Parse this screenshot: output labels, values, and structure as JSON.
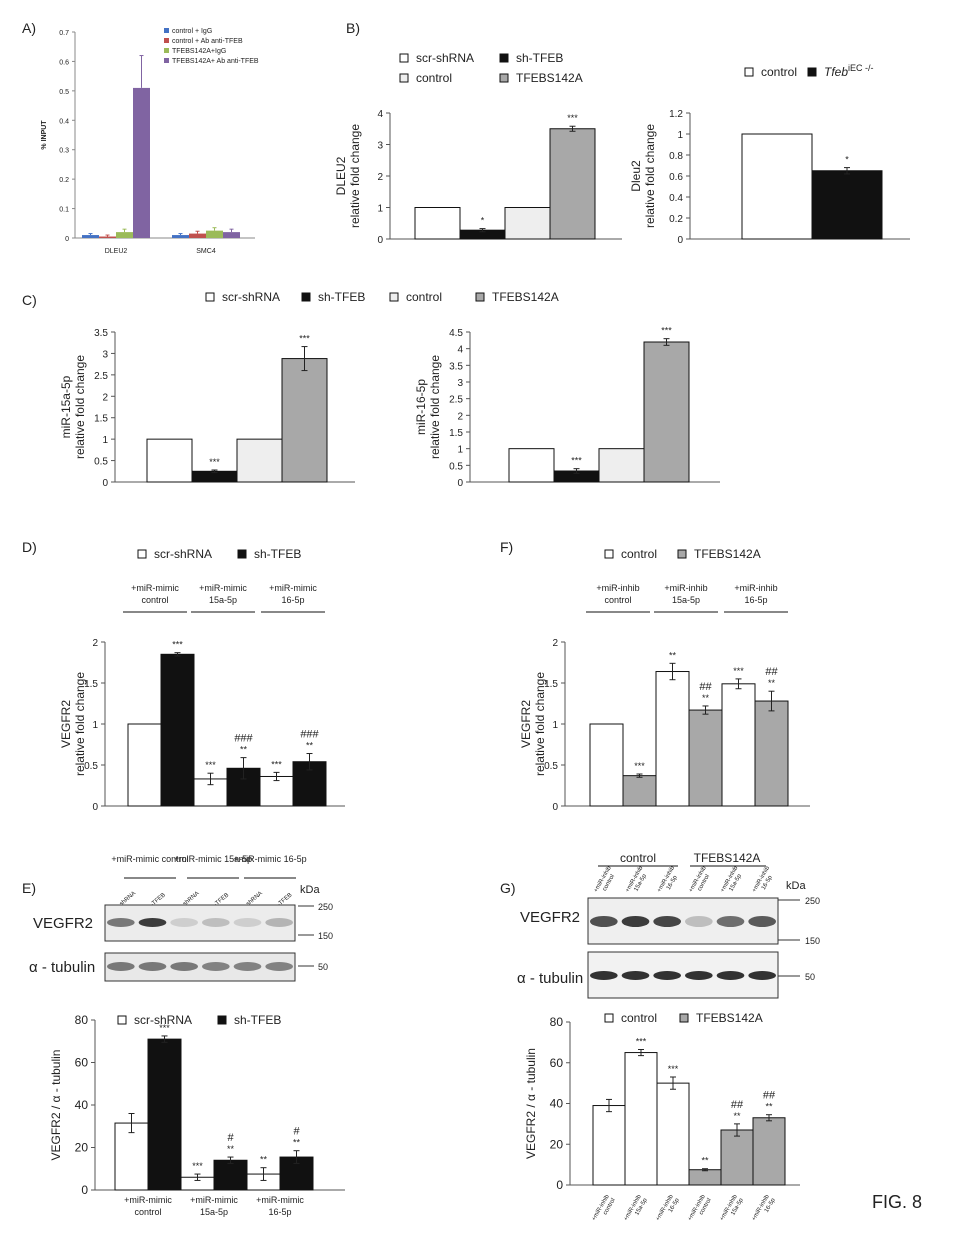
{
  "figure_label": "FIG. 8",
  "panel_labels": {
    "A": "A)",
    "B": "B)",
    "C": "C)",
    "D": "D)",
    "E": "E)",
    "F": "F)",
    "G": "G)"
  },
  "colors": {
    "white": "#ffffff",
    "black": "#111111",
    "light": "#eeeeee",
    "gray": "#a8a8a8",
    "blue": "#4472c4",
    "red": "#c0504d",
    "green": "#9bbb59",
    "purple": "#8064a2"
  },
  "blots": {
    "E": {
      "group_labels": [
        "+miR-mimic control",
        "+miR-mimic 15a-5p",
        "+miR-mimic 16-5p"
      ],
      "lane_labels": [
        "scr-shRNA",
        "sh-TFEB",
        "scr-shRNA",
        "sh-TFEB",
        "scr-shRNA",
        "sh-TFEB"
      ],
      "kda": "kDa",
      "rows": [
        "VEGFR2",
        "α - tubulin"
      ],
      "markers": [
        "250",
        "150",
        "50"
      ]
    },
    "G": {
      "group_labels": [
        "control",
        "TFEBS142A"
      ],
      "lane_labels": [
        "+miR-inhib control",
        "+miR-inhib 15a-5p",
        "+miR-inhib 16-5p",
        "+miR-inhib control",
        "+miR-inhib 15a-5p",
        "+miR-inhib 16-5p"
      ],
      "kda": "kDa",
      "rows": [
        "VEGFR2",
        "α - tubulin"
      ],
      "markers": [
        "250",
        "150",
        "50"
      ]
    }
  },
  "chart_data": [
    {
      "id": "A",
      "type": "bar",
      "ylabel": "% INPUT",
      "ylim": [
        0,
        0.7
      ],
      "yticks": [
        "0",
        "0.1",
        "0.2",
        "0.3",
        "0.4",
        "0.5",
        "0.6",
        "0.7"
      ],
      "categories": [
        "DLEU2",
        "SMC4"
      ],
      "series": [
        {
          "name": "control + IgG",
          "color": "#4472c4",
          "values": [
            0.01,
            0.01
          ],
          "err": [
            0.005,
            0.005
          ]
        },
        {
          "name": "control + Ab anti-TFEB",
          "color": "#c0504d",
          "values": [
            0.005,
            0.015
          ],
          "err": [
            0.005,
            0.008
          ]
        },
        {
          "name": "TFEBS142A+IgG",
          "color": "#9bbb59",
          "values": [
            0.02,
            0.025
          ],
          "err": [
            0.01,
            0.01
          ]
        },
        {
          "name": "TFEBS142A+ Ab anti-TFEB",
          "color": "#8064a2",
          "values": [
            0.51,
            0.02
          ],
          "err": [
            0.11,
            0.01
          ]
        }
      ]
    },
    {
      "id": "B1",
      "type": "bar",
      "ylabel": "DLEU2",
      "ylabel2": "relative fold change",
      "ylim": [
        0,
        4
      ],
      "yticks": [
        "0",
        "1",
        "2",
        "3",
        "4"
      ],
      "legend": [
        {
          "name": "scr-shRNA",
          "color": "#ffffff"
        },
        {
          "name": "sh-TFEB",
          "color": "#111111"
        },
        {
          "name": "control",
          "color": "#eeeeee"
        },
        {
          "name": "TFEBS142A",
          "color": "#a8a8a8"
        }
      ],
      "bars": [
        {
          "value": 1,
          "err": 0,
          "color": "#ffffff",
          "sig": ""
        },
        {
          "value": 0.28,
          "err": 0.05,
          "color": "#111111",
          "sig": "*"
        },
        {
          "value": 1,
          "err": 0,
          "color": "#eeeeee",
          "sig": ""
        },
        {
          "value": 3.5,
          "err": 0.08,
          "color": "#a8a8a8",
          "sig": "***"
        }
      ]
    },
    {
      "id": "B2",
      "type": "bar",
      "ylabel": "Dleu2",
      "ylabel2": "relative fold change",
      "ylim": [
        0,
        1.2
      ],
      "yticks": [
        "0",
        "0.2",
        "0.4",
        "0.6",
        "0.8",
        "1",
        "1.2"
      ],
      "legend": [
        {
          "name": "control",
          "color": "#ffffff"
        },
        {
          "name": "Tfeb",
          "sup": "iEC -/-",
          "color": "#111111"
        }
      ],
      "bars": [
        {
          "value": 1,
          "err": 0,
          "color": "#ffffff",
          "sig": ""
        },
        {
          "value": 0.65,
          "err": 0.03,
          "color": "#111111",
          "sig": "*"
        }
      ]
    },
    {
      "id": "C1",
      "type": "bar",
      "ylabel": "miR-15a-5p",
      "ylabel2": "relative fold change",
      "ylim": [
        0,
        3.5
      ],
      "yticks": [
        "0",
        "0.5",
        "1",
        "1.5",
        "2",
        "2.5",
        "3",
        "3.5"
      ],
      "legend": [
        {
          "name": "scr-shRNA",
          "color": "#ffffff"
        },
        {
          "name": "sh-TFEB",
          "color": "#111111"
        },
        {
          "name": "control",
          "color": "#eeeeee"
        },
        {
          "name": "TFEBS142A",
          "color": "#a8a8a8"
        }
      ],
      "bars": [
        {
          "value": 1,
          "err": 0,
          "color": "#ffffff",
          "sig": ""
        },
        {
          "value": 0.25,
          "err": 0.03,
          "color": "#111111",
          "sig": "***"
        },
        {
          "value": 1,
          "err": 0,
          "color": "#eeeeee",
          "sig": ""
        },
        {
          "value": 2.88,
          "err": 0.28,
          "color": "#a8a8a8",
          "sig": "***"
        }
      ]
    },
    {
      "id": "C2",
      "type": "bar",
      "ylabel": "miR-16-5p",
      "ylabel2": "relative fold change",
      "ylim": [
        0,
        4.5
      ],
      "yticks": [
        "0",
        "0.5",
        "1",
        "1.5",
        "2",
        "2.5",
        "3",
        "3.5",
        "4",
        "4.5"
      ],
      "bars": [
        {
          "value": 1,
          "err": 0,
          "color": "#ffffff",
          "sig": ""
        },
        {
          "value": 0.33,
          "err": 0.07,
          "color": "#111111",
          "sig": "***"
        },
        {
          "value": 1,
          "err": 0,
          "color": "#eeeeee",
          "sig": ""
        },
        {
          "value": 4.2,
          "err": 0.1,
          "color": "#a8a8a8",
          "sig": "***"
        }
      ]
    },
    {
      "id": "D",
      "type": "bar",
      "ylabel": "VEGFR2",
      "ylabel2": "relative fold change",
      "ylim": [
        0,
        2
      ],
      "yticks": [
        "0",
        "0.5",
        "1",
        "1.5",
        "2"
      ],
      "legend": [
        {
          "name": "scr-shRNA",
          "color": "#ffffff"
        },
        {
          "name": "sh-TFEB",
          "color": "#111111"
        }
      ],
      "groups": [
        "+miR-mimic control",
        "+miR-mimic 15a-5p",
        "+miR-mimic 16-5p"
      ],
      "bars": [
        {
          "value": 1,
          "err": 0,
          "color": "#ffffff",
          "sig": ""
        },
        {
          "value": 1.85,
          "err": 0.02,
          "color": "#111111",
          "sig": "***"
        },
        {
          "value": 0.33,
          "err": 0.07,
          "color": "#ffffff",
          "sig": "***"
        },
        {
          "value": 0.46,
          "err": 0.13,
          "color": "#111111",
          "sig": "**",
          "hash": "###"
        },
        {
          "value": 0.36,
          "err": 0.05,
          "color": "#ffffff",
          "sig": "***"
        },
        {
          "value": 0.54,
          "err": 0.1,
          "color": "#111111",
          "sig": "**",
          "hash": "###"
        }
      ]
    },
    {
      "id": "F",
      "type": "bar",
      "ylabel": "VEGFR2",
      "ylabel2": "relative fold change",
      "ylim": [
        0,
        2
      ],
      "yticks": [
        "0",
        "0.5",
        "1",
        "1.5",
        "2"
      ],
      "legend": [
        {
          "name": "control",
          "color": "#ffffff"
        },
        {
          "name": "TFEBS142A",
          "color": "#a8a8a8"
        }
      ],
      "groups": [
        "+miR-inhib control",
        "+miR-inhib 15a-5p",
        "+miR-inhib 16-5p"
      ],
      "bars": [
        {
          "value": 1,
          "err": 0,
          "color": "#ffffff",
          "sig": ""
        },
        {
          "value": 0.37,
          "err": 0.02,
          "color": "#a8a8a8",
          "sig": "***"
        },
        {
          "value": 1.64,
          "err": 0.1,
          "color": "#ffffff",
          "sig": "**"
        },
        {
          "value": 1.17,
          "err": 0.05,
          "color": "#a8a8a8",
          "sig": "**",
          "hash": "##"
        },
        {
          "value": 1.49,
          "err": 0.06,
          "color": "#ffffff",
          "sig": "***"
        },
        {
          "value": 1.28,
          "err": 0.12,
          "color": "#a8a8a8",
          "sig": "**",
          "hash": "##"
        }
      ]
    },
    {
      "id": "E",
      "type": "bar",
      "ylabel": "VEGFR2 / α - tubulin",
      "ylim": [
        0,
        80
      ],
      "yticks": [
        "0",
        "20",
        "40",
        "60",
        "80"
      ],
      "legend": [
        {
          "name": "scr-shRNA",
          "color": "#ffffff"
        },
        {
          "name": "sh-TFEB",
          "color": "#111111"
        }
      ],
      "xgroups": [
        "+miR-mimic control",
        "+miR-mimic 15a-5p",
        "+miR-mimic 16-5p"
      ],
      "bars": [
        {
          "value": 31.5,
          "err": 4.5,
          "color": "#ffffff",
          "sig": ""
        },
        {
          "value": 71,
          "err": 1.5,
          "color": "#111111",
          "sig": "***"
        },
        {
          "value": 6,
          "err": 1.5,
          "color": "#ffffff",
          "sig": "***"
        },
        {
          "value": 14,
          "err": 1.5,
          "color": "#111111",
          "sig": "**",
          "hash": "#"
        },
        {
          "value": 7.5,
          "err": 3,
          "color": "#ffffff",
          "sig": "**"
        },
        {
          "value": 15.5,
          "err": 3,
          "color": "#111111",
          "sig": "**",
          "hash": "#"
        }
      ]
    },
    {
      "id": "G",
      "type": "bar",
      "ylabel": "VEGFR2 / α - tubulin",
      "ylim": [
        0,
        80
      ],
      "yticks": [
        "0",
        "20",
        "40",
        "60",
        "80"
      ],
      "legend": [
        {
          "name": "control",
          "color": "#ffffff"
        },
        {
          "name": "TFEBS142A",
          "color": "#a8a8a8"
        }
      ],
      "xlabels": [
        "+miR-inhib control",
        "+miR-inhib 15a-5p",
        "+miR-inhib 16-5p",
        "+miR-inhib control",
        "+miR-inhib 15a-5p",
        "+miR-inhib 16-5p"
      ],
      "bars": [
        {
          "value": 39,
          "err": 3,
          "color": "#ffffff",
          "sig": ""
        },
        {
          "value": 65,
          "err": 1.5,
          "color": "#ffffff",
          "sig": "***"
        },
        {
          "value": 50,
          "err": 3,
          "color": "#ffffff",
          "sig": "***"
        },
        {
          "value": 7.5,
          "err": 0.5,
          "color": "#a8a8a8",
          "sig": "**"
        },
        {
          "value": 27,
          "err": 3,
          "color": "#a8a8a8",
          "sig": "**",
          "hash": "##"
        },
        {
          "value": 33,
          "err": 1.5,
          "color": "#a8a8a8",
          "sig": "**",
          "hash": "##"
        }
      ]
    }
  ]
}
